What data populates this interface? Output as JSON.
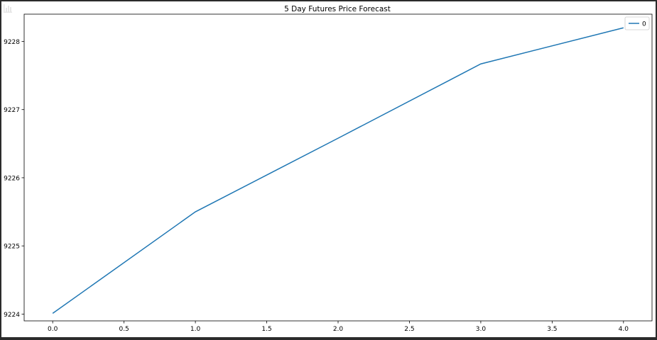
{
  "toolbar": {
    "icon": "bar-chart-icon"
  },
  "chart_data": {
    "type": "line",
    "title": "5 Day Futures Price Forecast",
    "xlabel": "",
    "ylabel": "",
    "x": [
      0,
      1,
      2,
      3,
      4
    ],
    "series": [
      {
        "name": "0",
        "values": [
          9224.01,
          9225.5,
          9226.58,
          9227.67,
          9228.2
        ],
        "color": "#1f77b4"
      }
    ],
    "xlim": [
      -0.2,
      4.2
    ],
    "ylim": [
      9223.9,
      9228.4
    ],
    "xticks": [
      "0.0",
      "0.5",
      "1.0",
      "1.5",
      "2.0",
      "2.5",
      "3.0",
      "3.5",
      "4.0"
    ],
    "yticks": [
      "9224",
      "9225",
      "9226",
      "9227",
      "9228"
    ],
    "grid": false,
    "legend_position": "top-right"
  }
}
